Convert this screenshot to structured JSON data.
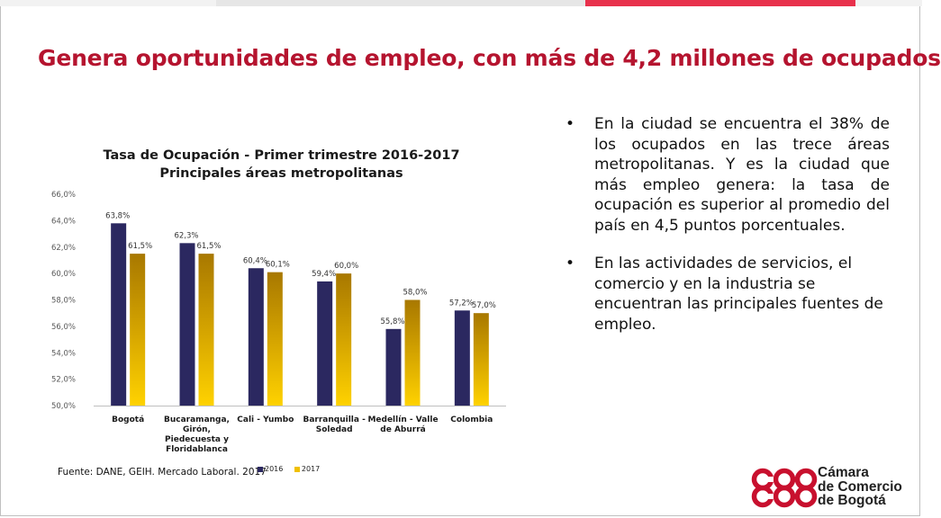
{
  "slide": {
    "title": "Genera oportunidades de empleo, con más de 4,2 millones de ocupados",
    "accent_color": "#b5142f",
    "strip_colors": [
      "#f2f2f2",
      "#e6e6e6",
      "#e8314c",
      "#f2f2f2"
    ]
  },
  "source_note": "Fuente: DANE, GEIH. Mercado Laboral. 2017",
  "bullets": [
    "En la ciudad se encuentra el 38% de los ocupados en las trece áreas metropolitanas. Y es la ciudad que más empleo genera: la tasa de ocupación es superior al promedio del país en 4,5 puntos porcentuales.",
    "En las actividades de servicios, el comercio y en la industria se encuentran las principales fuentes de empleo."
  ],
  "bullet_symbol": "•",
  "logo": {
    "lines": [
      "Cámara",
      "de Comercio",
      "de Bogotá"
    ],
    "icon": "ccb-logo-icon",
    "color": "#c8102e"
  },
  "chart_data": {
    "type": "bar",
    "title_lines": [
      "Tasa de Ocupación - Primer trimestre 2016-2017",
      "Principales áreas metropolitanas"
    ],
    "categories": [
      [
        "Bogotá"
      ],
      [
        "Bucaramanga,",
        "Girón,",
        "Piedecuesta y",
        "Floridablanca"
      ],
      [
        "Cali - Yumbo"
      ],
      [
        "Barranquilla -",
        "Soledad"
      ],
      [
        "Medellín - Valle",
        "de Aburrá"
      ],
      [
        "Colombia"
      ]
    ],
    "series": [
      {
        "name": "2016",
        "values": [
          63.8,
          62.3,
          60.4,
          59.4,
          55.8,
          57.2
        ],
        "labels": [
          "63,8%",
          "62,3%",
          "60,4%",
          "59,4%",
          "55,8%",
          "57,2%"
        ],
        "color": "#2b2860"
      },
      {
        "name": "2017",
        "values": [
          61.5,
          61.5,
          60.1,
          60.0,
          58.0,
          57.0
        ],
        "labels": [
          "61,5%",
          "61,5%",
          "60,1%",
          "60,0%",
          "58,0%",
          "57,0%"
        ],
        "color": "#c9a000"
      }
    ],
    "ylim": [
      50,
      66
    ],
    "yticks": [
      50,
      52,
      54,
      56,
      58,
      60,
      62,
      64,
      66
    ],
    "ytick_labels": [
      "50,0%",
      "52,0%",
      "54,0%",
      "56,0%",
      "58,0%",
      "60,0%",
      "62,0%",
      "64,0%",
      "66,0%"
    ],
    "grid": false,
    "legend": "bottom"
  }
}
